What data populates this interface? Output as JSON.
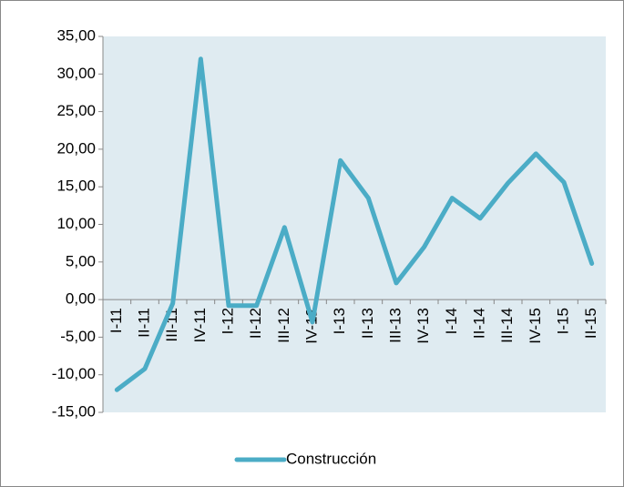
{
  "chart_data": {
    "type": "line",
    "categories": [
      "I-11",
      "II-11",
      "III-11",
      "IV-11",
      "I-12",
      "II-12",
      "III-12",
      "IV-12",
      "I-13",
      "II-13",
      "III-13",
      "IV-13",
      "I-14",
      "II-14",
      "III-14",
      "IV-15",
      "I-15",
      "II-15"
    ],
    "series": [
      {
        "name": "Construcción",
        "color": "#4bacc6",
        "values": [
          -12.0,
          -9.2,
          -0.5,
          32.0,
          -0.8,
          -0.8,
          9.6,
          -3.0,
          18.5,
          13.5,
          2.2,
          7.0,
          13.5,
          10.8,
          15.5,
          19.4,
          15.6,
          4.8
        ]
      }
    ],
    "ylim": [
      -15,
      35
    ],
    "yticks": [
      {
        "value": -15,
        "label": "-15,00"
      },
      {
        "value": -10,
        "label": "-10,00"
      },
      {
        "value": -5,
        "label": "-5,00"
      },
      {
        "value": 0,
        "label": "0,00"
      },
      {
        "value": 5,
        "label": "5,00"
      },
      {
        "value": 10,
        "label": "10,00"
      },
      {
        "value": 15,
        "label": "15,00"
      },
      {
        "value": 20,
        "label": "20,00"
      },
      {
        "value": 25,
        "label": "25,00"
      },
      {
        "value": 30,
        "label": "30,00"
      },
      {
        "value": 35,
        "label": "35,00"
      }
    ],
    "legend": "bottom"
  }
}
